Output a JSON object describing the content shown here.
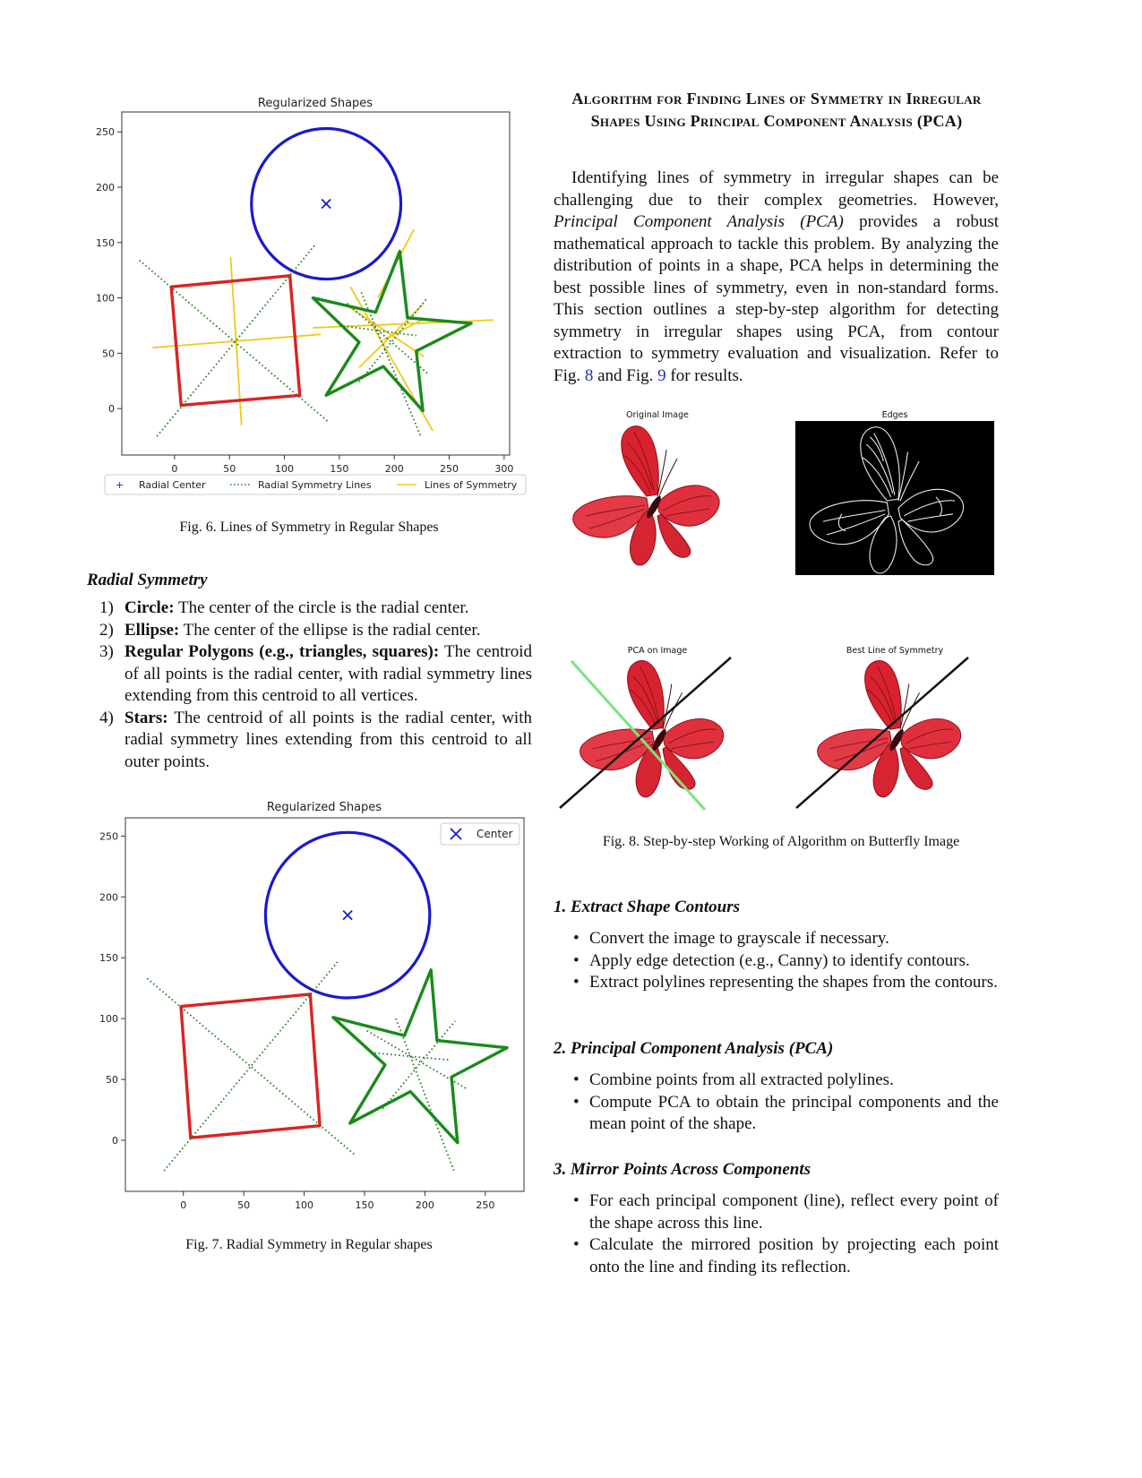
{
  "fig6": {
    "caption": "Fig. 6.  Lines of Symmetry in Regular Shapes",
    "chart_data": {
      "type": "line",
      "title": "Regularized Shapes",
      "xlim": [
        -48,
        305
      ],
      "ylim": [
        -42,
        268
      ],
      "xticks": [
        0,
        50,
        100,
        150,
        200,
        250,
        300
      ],
      "yticks": [
        0,
        50,
        100,
        150,
        200,
        250
      ],
      "legend": {
        "placement": "bottom",
        "entries": [
          "Radial Center",
          "Radial Symmetry Lines",
          "Lines of Symmetry"
        ]
      },
      "series": [
        {
          "shape": "circle",
          "color": "#1a1acc",
          "center": [
            138,
            185
          ],
          "radius": 68
        },
        {
          "shape": "polygon",
          "color": "#dd2222",
          "points": [
            [
              -3,
              110
            ],
            [
              105,
              120
            ],
            [
              114,
              12
            ],
            [
              6,
              3
            ]
          ]
        },
        {
          "shape": "polygon",
          "color": "#1a8a1a",
          "points": [
            [
              205,
              142
            ],
            [
              212,
              82
            ],
            [
              270,
              77
            ],
            [
              220,
              52
            ],
            [
              226,
              -2
            ],
            [
              190,
              38
            ],
            [
              138,
              12
            ],
            [
              168,
              60
            ],
            [
              126,
              100
            ],
            [
              183,
              87
            ]
          ]
        }
      ],
      "center": [
        138,
        185
      ],
      "radial_lines": [
        [
          [
            -32,
            134
          ],
          [
            140,
            -12
          ]
        ],
        [
          [
            -16,
            -25
          ],
          [
            128,
            148
          ]
        ],
        [
          [
            170,
            105
          ],
          [
            224,
            -25
          ]
        ],
        [
          [
            157,
            95
          ],
          [
            230,
            32
          ]
        ],
        [
          [
            150,
            75
          ],
          [
            220,
            66
          ]
        ],
        [
          [
            168,
            24
          ],
          [
            230,
            100
          ]
        ]
      ],
      "symmetry_lines": [
        [
          [
            -20,
            55
          ],
          [
            133,
            67
          ]
        ],
        [
          [
            51,
            137
          ],
          [
            61,
            -15
          ]
        ],
        [
          [
            160,
            110
          ],
          [
            235,
            -20
          ]
        ],
        [
          [
            168,
            37
          ],
          [
            226,
            94
          ]
        ],
        [
          [
            157,
            93
          ],
          [
            227,
            47
          ]
        ],
        [
          [
            126,
            73
          ],
          [
            290,
            80
          ]
        ],
        [
          [
            185,
            100
          ],
          [
            218,
            162
          ]
        ],
        [
          [
            190,
            62
          ],
          [
            225,
            80
          ]
        ]
      ]
    }
  },
  "fig7": {
    "caption": "Fig. 7.  Radial Symmetry in Regular shapes",
    "chart_data": {
      "type": "line",
      "title": "Regularized Shapes",
      "xlim": [
        -48,
        282
      ],
      "ylim": [
        -42,
        265
      ],
      "xticks": [
        0,
        50,
        100,
        150,
        200,
        250
      ],
      "yticks": [
        0,
        50,
        100,
        150,
        200,
        250
      ],
      "legend": {
        "placement": "top-right",
        "entries": [
          "Center"
        ]
      },
      "series": [
        {
          "shape": "circle",
          "color": "#1a1acc",
          "center": [
            136,
            185
          ],
          "radius": 68
        },
        {
          "shape": "polygon",
          "color": "#dd2222",
          "points": [
            [
              -2,
              110
            ],
            [
              105,
              120
            ],
            [
              113,
              12
            ],
            [
              6,
              2
            ]
          ]
        },
        {
          "shape": "polygon",
          "color": "#1a8a1a",
          "points": [
            [
              205,
              140
            ],
            [
              210,
              82
            ],
            [
              268,
              76
            ],
            [
              222,
              52
            ],
            [
              227,
              -2
            ],
            [
              188,
              40
            ],
            [
              138,
              14
            ],
            [
              167,
              62
            ],
            [
              124,
              101
            ],
            [
              183,
              86
            ]
          ]
        }
      ],
      "center": [
        136,
        185
      ],
      "radial_lines": [
        [
          [
            -30,
            133
          ],
          [
            142,
            -12
          ]
        ],
        [
          [
            -16,
            -25
          ],
          [
            128,
            147
          ]
        ],
        [
          [
            176,
            100
          ],
          [
            224,
            -25
          ]
        ],
        [
          [
            152,
            90
          ],
          [
            235,
            42
          ]
        ],
        [
          [
            155,
            72
          ],
          [
            220,
            66
          ]
        ],
        [
          [
            165,
            26
          ],
          [
            225,
            98
          ]
        ]
      ]
    }
  },
  "radial": {
    "title": "Radial Symmetry",
    "items": [
      {
        "num": "1)",
        "term": "Circle:",
        "text": " The center of the circle is the radial center."
      },
      {
        "num": "2)",
        "term": "Ellipse:",
        "text": " The center of the ellipse is the radial center."
      },
      {
        "num": "3)",
        "term": "Regular Polygons (e.g., triangles, squares):",
        "text": " The centroid of all points is the radial center, with radial symmetry lines extending from this centroid to all vertices."
      },
      {
        "num": "4)",
        "term": "Stars:",
        "text": " The centroid of all points is the radial center, with radial symmetry lines extending from this centroid to all outer points."
      }
    ]
  },
  "section": {
    "title": "Algorithm for Finding Lines of Symmetry in Irregular Shapes Using Principal Component Analysis (PCA)",
    "intro_a": "Identifying lines of symmetry in irregular shapes can be challenging due to their complex geometries. However, ",
    "intro_em": "Principal Component Analysis (PCA)",
    "intro_b": " provides a robust mathematical approach to tackle this problem. By analyzing the distribution of points in a shape, PCA helps in determining the best possible lines of symmetry, even in non-standard forms. This section outlines a step-by-step algorithm for detecting symmetry in irregular shapes using PCA, from contour extraction to symmetry evaluation and visualization. Refer to Fig. ",
    "ref8": "8",
    "intro_c": " and Fig. ",
    "ref9": "9",
    "intro_d": " for results."
  },
  "fig8": {
    "caption": "Fig. 8.  Step-by-step Working of Algorithm on Butterfly Image",
    "panels": [
      "Original Image",
      "Edges",
      "PCA on Image",
      "Best Line of Symmetry"
    ]
  },
  "steps": [
    {
      "title": "1. Extract Shape Contours",
      "bullets": [
        "Convert the image to grayscale if necessary.",
        "Apply edge detection (e.g., Canny) to identify contours.",
        "Extract polylines representing the shapes from the contours."
      ]
    },
    {
      "title": "2. Principal Component Analysis (PCA)",
      "bullets": [
        "Combine points from all extracted polylines.",
        "Compute PCA to obtain the principal components and the mean point of the shape."
      ]
    },
    {
      "title": "3. Mirror Points Across Components",
      "bullets": [
        "For each principal component (line), reflect every point of the shape across this line.",
        "Calculate the mirrored position by projecting each point onto the line and finding its reflection."
      ]
    }
  ]
}
